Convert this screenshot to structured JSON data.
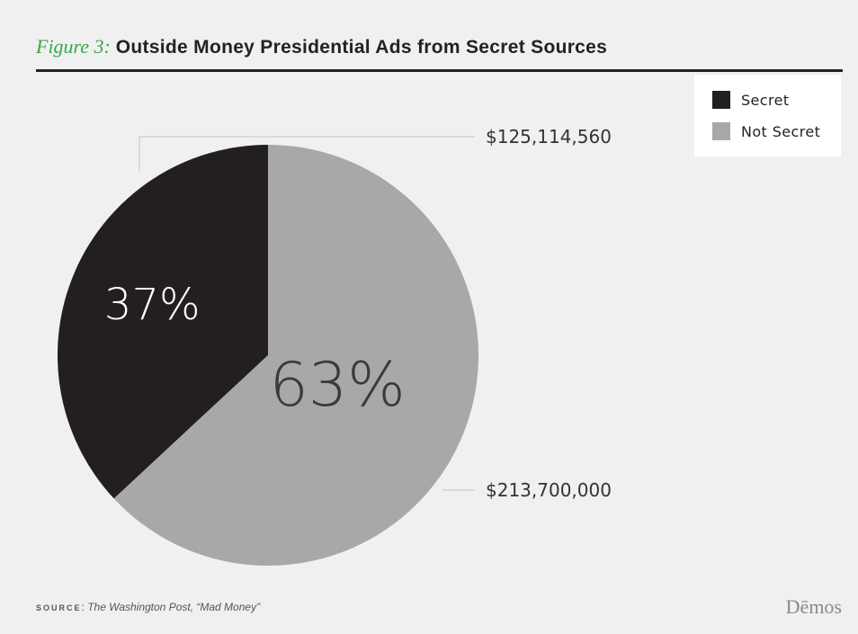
{
  "header": {
    "figure_label": "Figure 3:",
    "title": "Outside Money Presidential Ads from Secret Sources"
  },
  "colors": {
    "accent_green": "#3aa64c",
    "secret": "#231f20",
    "not_secret": "#a7a8aa",
    "background": "#f0f0f0"
  },
  "chart_data": {
    "type": "pie",
    "slices": [
      {
        "label": "Secret",
        "value": 125114560,
        "value_label": "$125,114,560",
        "percent_label": "37%",
        "color": "#231f20",
        "text_color": "#ffffff"
      },
      {
        "label": "Not Secret",
        "value": 213700000,
        "value_label": "$213,700,000",
        "percent_label": "63%",
        "color": "#a7a8aa",
        "text_color": "#3a3a3a"
      }
    ],
    "legend_position": "top-right"
  },
  "legend": {
    "items": [
      {
        "label": "Secret",
        "color": "#231f20"
      },
      {
        "label": "Not Secret",
        "color": "#a7a8aa"
      }
    ]
  },
  "footer": {
    "source_word": "SOURCE",
    "source_sep": ":",
    "source_text": " The Washington Post, “Mad Money”",
    "brand": "Dēmos"
  }
}
